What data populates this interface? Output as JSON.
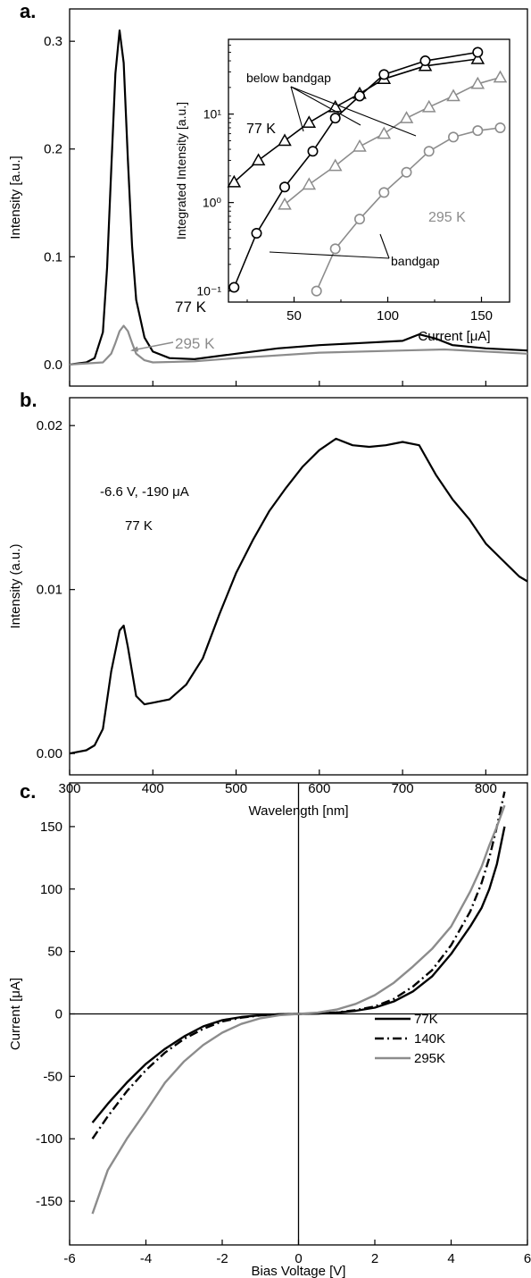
{
  "panels": {
    "a": {
      "label": "a."
    },
    "b": {
      "label": "b."
    },
    "c": {
      "label": "c."
    }
  },
  "colors": {
    "black": "#000000",
    "gray": "#8c8c8c"
  },
  "chart_data": [
    {
      "panel": "a",
      "type": "line",
      "ylabel": "Intensity [a.u.]",
      "xlim": [
        300,
        850
      ],
      "ylim": [
        -0.02,
        0.33
      ],
      "yticks": [
        0.0,
        0.1,
        0.2,
        0.3
      ],
      "ytick_labels": [
        "0.0",
        "0.1",
        "0.2",
        "0.3"
      ],
      "xticks": [
        300,
        400,
        500,
        600,
        700,
        800
      ],
      "series": [
        {
          "name": "77 K",
          "color": "#000000",
          "x": [
            300,
            320,
            330,
            340,
            345,
            350,
            355,
            360,
            365,
            370,
            375,
            380,
            390,
            400,
            420,
            450,
            500,
            550,
            600,
            650,
            700,
            720,
            740,
            760,
            800,
            850
          ],
          "y": [
            0.0,
            0.002,
            0.006,
            0.03,
            0.09,
            0.18,
            0.27,
            0.31,
            0.28,
            0.19,
            0.11,
            0.06,
            0.025,
            0.012,
            0.006,
            0.005,
            0.01,
            0.015,
            0.018,
            0.02,
            0.022,
            0.028,
            0.024,
            0.018,
            0.015,
            0.013
          ]
        },
        {
          "name": "295 K",
          "color": "#8c8c8c",
          "x": [
            300,
            340,
            350,
            355,
            360,
            365,
            370,
            375,
            380,
            390,
            400,
            450,
            500,
            600,
            700,
            750,
            800,
            850
          ],
          "y": [
            0.0,
            0.002,
            0.01,
            0.02,
            0.031,
            0.036,
            0.031,
            0.02,
            0.01,
            0.004,
            0.002,
            0.003,
            0.006,
            0.011,
            0.013,
            0.014,
            0.012,
            0.01
          ]
        }
      ],
      "annotations": [
        "77 K",
        "295 K"
      ]
    },
    {
      "panel": "a-inset",
      "type": "scatter",
      "xlabel": "Current [μA]",
      "ylabel": "Integrated Intensity [a.u.]",
      "y_scale": "log",
      "xlim": [
        15,
        165
      ],
      "ylim": [
        0.075,
        70
      ],
      "xticks": [
        50,
        100,
        150
      ],
      "xtick_labels": [
        "50",
        "100",
        "150"
      ],
      "yticks": [
        0.1,
        1,
        10
      ],
      "ytick_labels": [
        "10⁻¹",
        "10⁰",
        "10¹"
      ],
      "series": [
        {
          "temp": "77 K",
          "marker": "triangle",
          "color": "#000000",
          "x": [
            18,
            31,
            45,
            58,
            72,
            85,
            98,
            120,
            148
          ],
          "y": [
            1.7,
            3.0,
            5.0,
            8.0,
            12.0,
            17.0,
            25.0,
            35.0,
            42.0
          ]
        },
        {
          "temp": "77 K",
          "marker": "circle",
          "color": "#000000",
          "x": [
            18,
            30,
            45,
            60,
            72,
            85,
            98,
            120,
            148
          ],
          "y": [
            0.11,
            0.45,
            1.5,
            3.8,
            9.0,
            16.0,
            28.0,
            40.0,
            50.0
          ]
        },
        {
          "temp": "295 K",
          "marker": "triangle",
          "color": "#8c8c8c",
          "x": [
            45,
            58,
            72,
            85,
            98,
            110,
            122,
            135,
            148,
            160
          ],
          "y": [
            0.95,
            1.6,
            2.6,
            4.3,
            6.0,
            9.0,
            12.0,
            16.0,
            22.0,
            26.0
          ]
        },
        {
          "temp": "295 K",
          "marker": "circle",
          "color": "#8c8c8c",
          "x": [
            62,
            72,
            85,
            98,
            110,
            122,
            135,
            148,
            160
          ],
          "y": [
            0.1,
            0.3,
            0.65,
            1.3,
            2.2,
            3.8,
            5.5,
            6.5,
            7.0
          ]
        }
      ],
      "annotations": [
        "below bandgap",
        "bandgap",
        "77 K",
        "295 K"
      ]
    },
    {
      "panel": "b",
      "type": "line",
      "xlabel": "Wavelength [nm]",
      "ylabel": "Intensity (a.u.)",
      "xlim": [
        300,
        850
      ],
      "ylim": [
        -0.0013,
        0.0217
      ],
      "xticks": [
        300,
        400,
        500,
        600,
        700,
        800
      ],
      "xtick_labels": [
        "300",
        "400",
        "500",
        "600",
        "700",
        "800"
      ],
      "yticks": [
        0.0,
        0.01,
        0.02
      ],
      "ytick_labels": [
        "0.00",
        "0.01",
        "0.02"
      ],
      "series": [
        {
          "color": "#000000",
          "x": [
            300,
            320,
            330,
            340,
            350,
            360,
            365,
            370,
            380,
            390,
            400,
            420,
            440,
            460,
            480,
            500,
            520,
            540,
            560,
            580,
            600,
            620,
            640,
            660,
            680,
            700,
            720,
            740,
            760,
            780,
            800,
            820,
            840,
            850
          ],
          "y": [
            0.0,
            0.0002,
            0.0005,
            0.0015,
            0.005,
            0.0075,
            0.0078,
            0.0065,
            0.0035,
            0.003,
            0.0031,
            0.0033,
            0.0042,
            0.0058,
            0.0085,
            0.011,
            0.013,
            0.0148,
            0.0162,
            0.0175,
            0.0185,
            0.0192,
            0.0188,
            0.0187,
            0.0188,
            0.019,
            0.0188,
            0.017,
            0.0155,
            0.0143,
            0.0128,
            0.0118,
            0.0108,
            0.0105
          ]
        }
      ],
      "annotations": [
        "-6.6 V, -190 μA",
        "77 K"
      ]
    },
    {
      "panel": "c",
      "type": "line",
      "xlabel": "Bias Voltage [V]",
      "ylabel": "Current [μA]",
      "xlim": [
        -6,
        6
      ],
      "ylim": [
        -185,
        185
      ],
      "xticks": [
        -6,
        -4,
        -2,
        0,
        2,
        4,
        6
      ],
      "xtick_labels": [
        "-6",
        "-4",
        "-2",
        "0",
        "2",
        "4",
        "6"
      ],
      "yticks": [
        -150,
        -100,
        -50,
        0,
        50,
        100,
        150
      ],
      "ytick_labels": [
        "-150",
        "-100",
        "-50",
        "0",
        "50",
        "100",
        "150"
      ],
      "legend_position": "bottom-right",
      "series": [
        {
          "name": "77K",
          "color": "#000000",
          "dash": "solid",
          "x": [
            -5.4,
            -5.0,
            -4.5,
            -4.0,
            -3.5,
            -3.0,
            -2.5,
            -2.0,
            -1.5,
            -1.0,
            -0.5,
            0,
            0.5,
            1.0,
            1.5,
            2.0,
            2.5,
            3.0,
            3.5,
            4.0,
            4.5,
            4.8,
            5.0,
            5.2,
            5.4
          ],
          "y": [
            -87,
            -72,
            -55,
            -40,
            -28,
            -18,
            -10,
            -5,
            -2.5,
            -1,
            -0.3,
            0,
            0.3,
            1,
            2.5,
            5,
            10,
            18,
            30,
            48,
            70,
            85,
            100,
            120,
            150
          ]
        },
        {
          "name": "140K",
          "color": "#000000",
          "dash": "dashdot",
          "x": [
            -5.4,
            -5.0,
            -4.5,
            -4.0,
            -3.5,
            -3.0,
            -2.5,
            -2.0,
            -1.5,
            -1.0,
            -0.5,
            0,
            0.5,
            1.0,
            1.5,
            2.0,
            2.5,
            3.0,
            3.5,
            4.0,
            4.5,
            4.8,
            5.0,
            5.2,
            5.4
          ],
          "y": [
            -100,
            -82,
            -62,
            -45,
            -31,
            -20,
            -12,
            -6,
            -3,
            -1.2,
            -0.3,
            0,
            0.3,
            1.2,
            3,
            6,
            12,
            22,
            35,
            55,
            82,
            105,
            125,
            150,
            178
          ]
        },
        {
          "name": "295K",
          "color": "#8c8c8c",
          "dash": "solid",
          "x": [
            -5.4,
            -5.0,
            -4.5,
            -4.0,
            -3.5,
            -3.0,
            -2.5,
            -2.0,
            -1.5,
            -1.0,
            -0.5,
            0,
            0.5,
            1.0,
            1.5,
            2.0,
            2.5,
            3.0,
            3.5,
            4.0,
            4.5,
            4.8,
            5.0,
            5.2,
            5.4
          ],
          "y": [
            -160,
            -125,
            -100,
            -78,
            -55,
            -38,
            -25,
            -15,
            -8,
            -3.5,
            -1,
            0,
            1,
            3.5,
            8,
            15,
            25,
            38,
            52,
            70,
            98,
            118,
            135,
            150,
            167
          ]
        }
      ]
    }
  ]
}
